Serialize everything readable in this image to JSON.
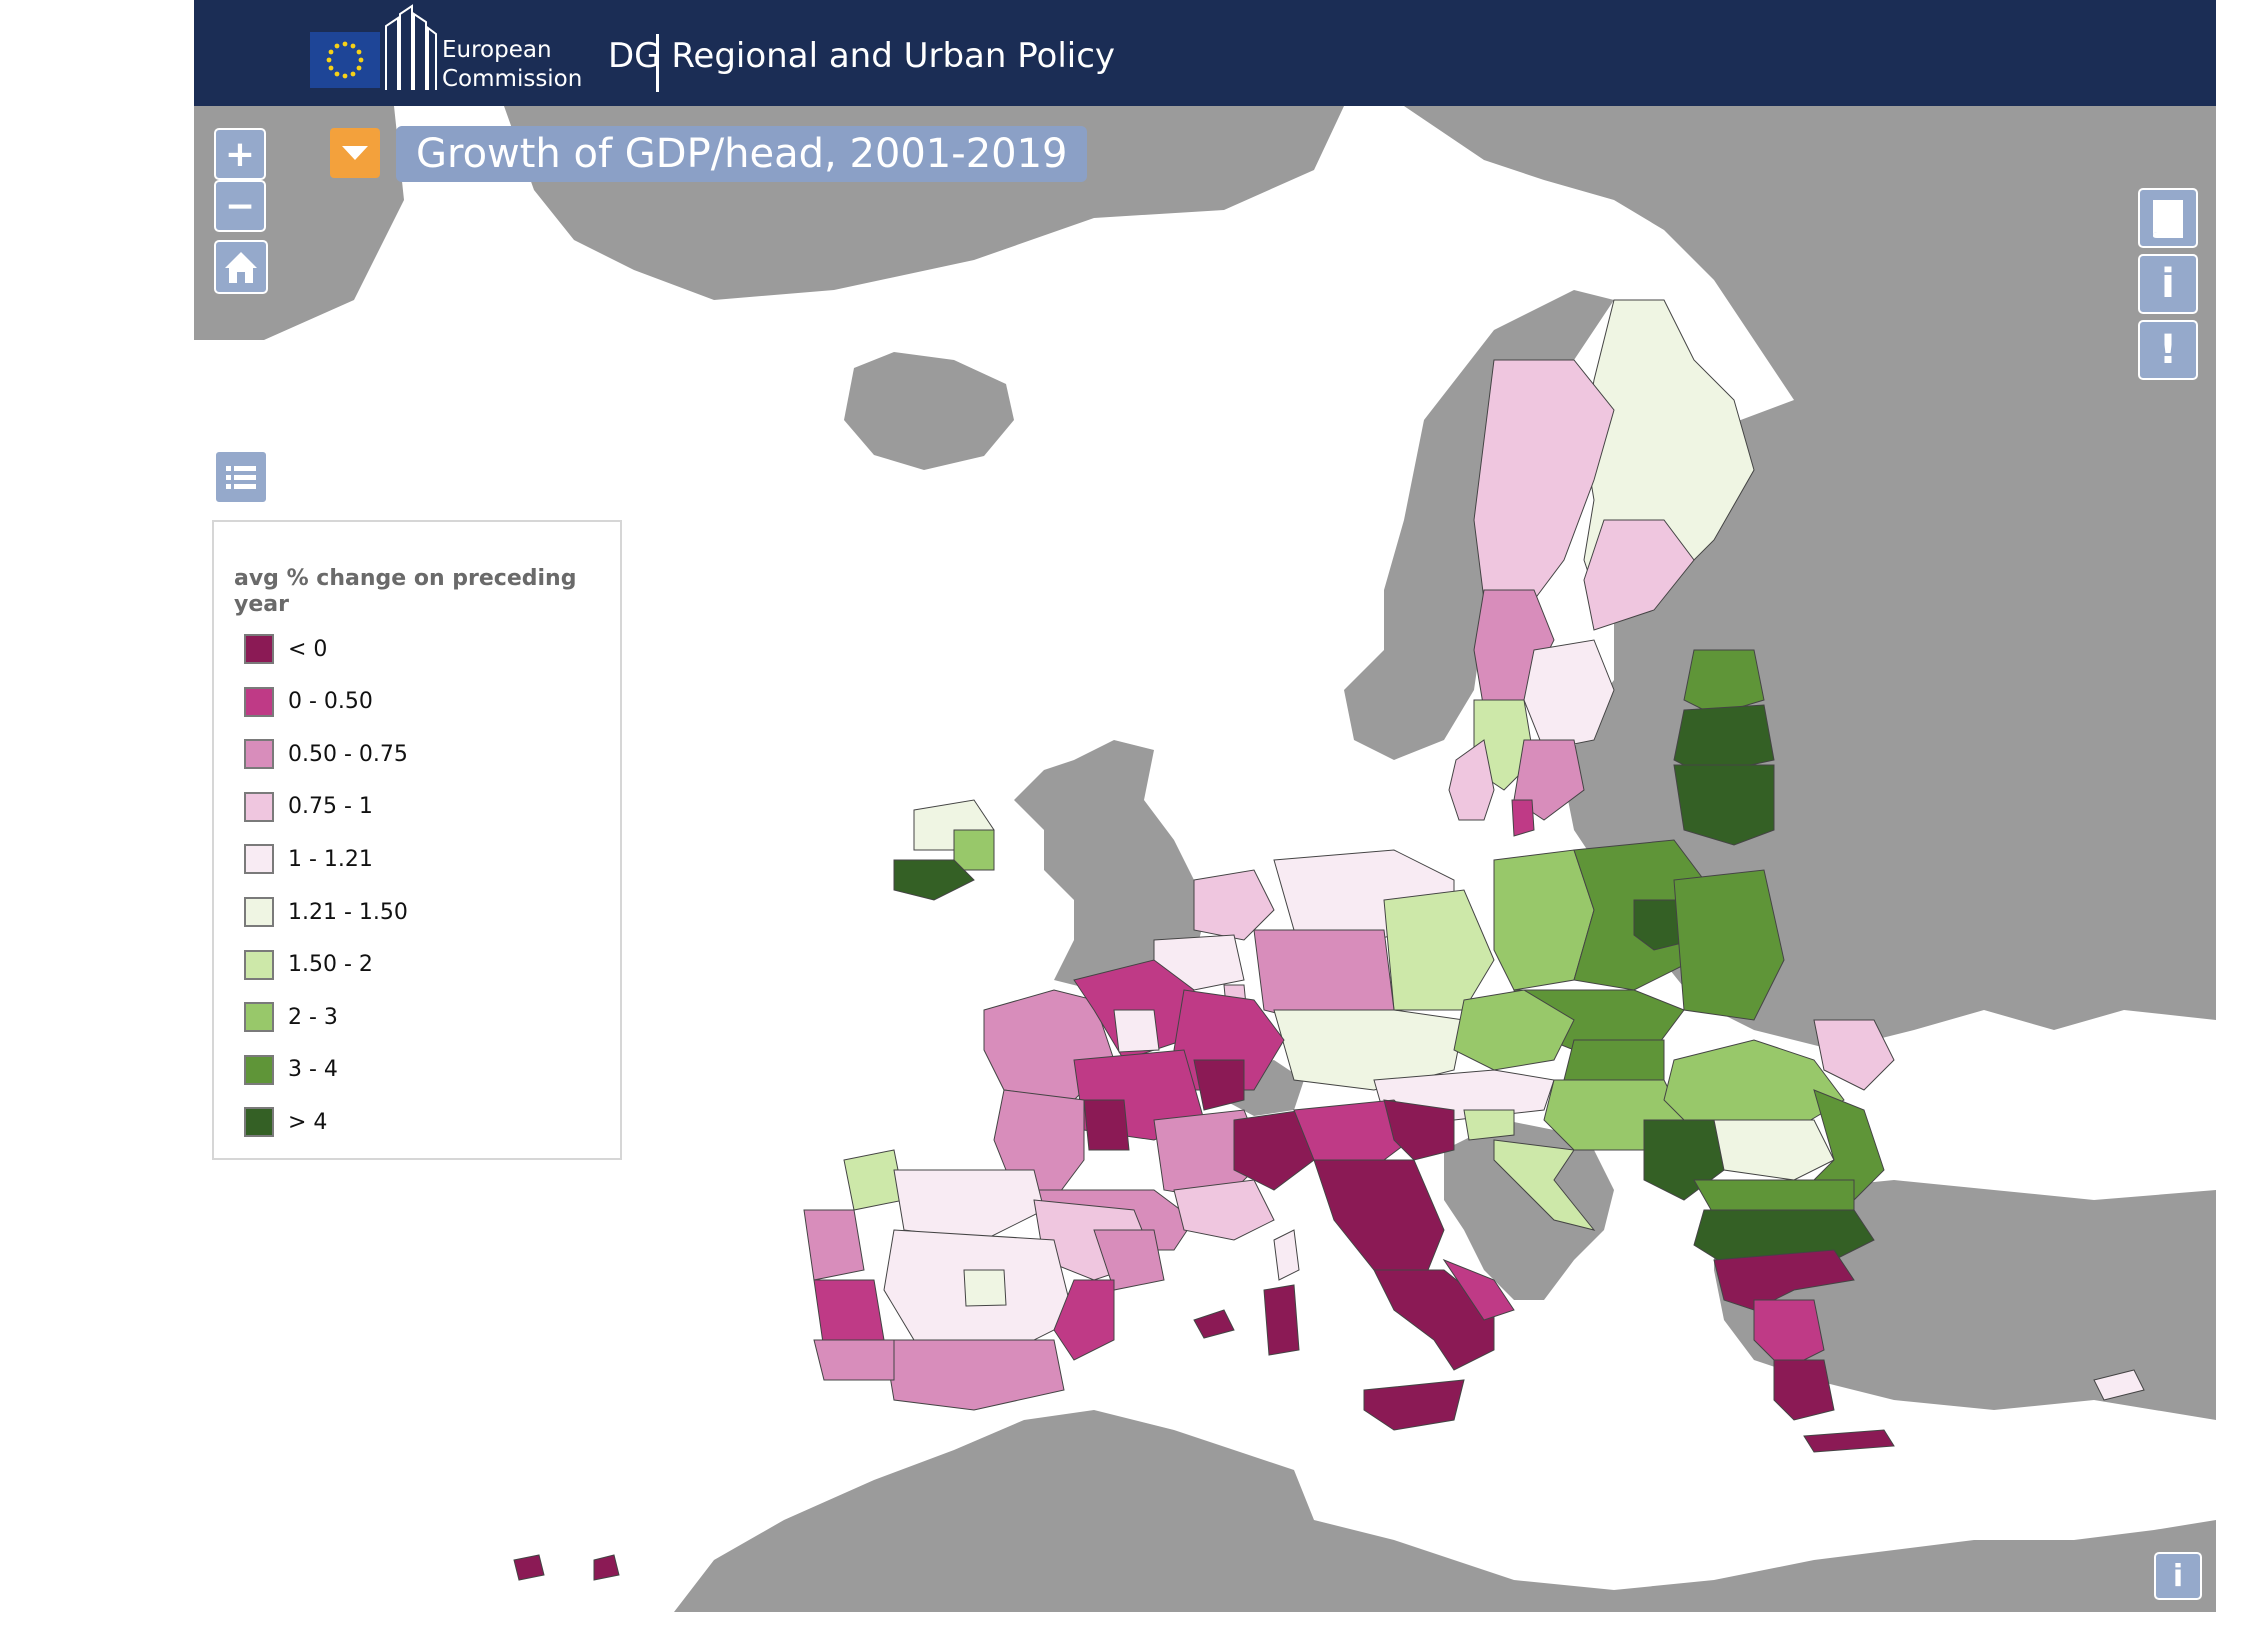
{
  "header": {
    "org_line1": "European",
    "org_line2": "Commission",
    "department": "DG Regional and Urban Policy"
  },
  "map": {
    "title": "Growth of GDP/head, 2001-2019",
    "controls": {
      "zoom_in": "+",
      "zoom_out": "−",
      "info_label": "i",
      "alert_label": "!",
      "bottom_info_label": "i"
    },
    "colors": {
      "sea": "#ffffff",
      "non_eu_land": "#9b9b9b",
      "header": "#1b2d55",
      "control": "#95a9cb",
      "title_toggle": "#f3a13c"
    }
  },
  "legend": {
    "title": "avg % change on preceding year",
    "classes": [
      {
        "label": "< 0",
        "color": "#8b1a55"
      },
      {
        "label": "0 - 0.50",
        "color": "#bf3a86"
      },
      {
        "label": "0.50 - 0.75",
        "color": "#d88dbb"
      },
      {
        "label": "0.75 - 1",
        "color": "#efc6df"
      },
      {
        "label": "1 - 1.21",
        "color": "#f8ebf3"
      },
      {
        "label": "1.21 - 1.50",
        "color": "#eff5e3"
      },
      {
        "label": "1.50 - 2",
        "color": "#cde8a9"
      },
      {
        "label": "2 - 3",
        "color": "#98c86a"
      },
      {
        "label": "3 - 4",
        "color": "#5f9538"
      },
      {
        "label": "> 4",
        "color": "#346025"
      }
    ]
  }
}
